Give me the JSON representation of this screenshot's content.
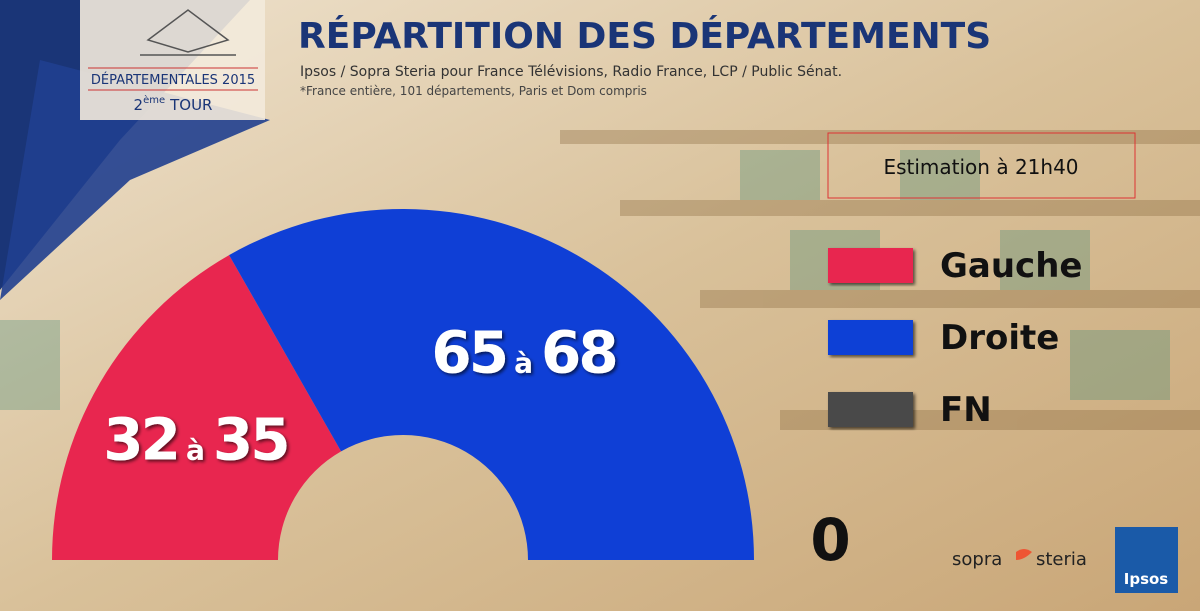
{
  "chart_data": {
    "type": "half-donut",
    "title": "RÉPARTITION DES DÉPARTEMENTS",
    "subtitle": "Ipsos / Sopra Steria pour France Télévisions, Radio France, LCP / Public Sénat.",
    "note": "*France entière, 101 départements, Paris et Dom compris",
    "badge": {
      "line1": "DÉPARTEMENTALES 2015",
      "round_number": "2",
      "round_suffix": "ème",
      "round_word": "TOUR"
    },
    "estimation": "Estimation à 21h40",
    "separator": "à",
    "series": [
      {
        "name": "Gauche",
        "color": "#e8264f",
        "values": [
          32,
          35
        ]
      },
      {
        "name": "Droite",
        "color": "#0f3fd6",
        "values": [
          65,
          68
        ]
      },
      {
        "name": "FN",
        "color": "#4a4a4a",
        "values": [
          0
        ]
      }
    ],
    "logos": {
      "sopra": "sopra",
      "steria": "steria",
      "ipsos": "Ipsos"
    }
  }
}
